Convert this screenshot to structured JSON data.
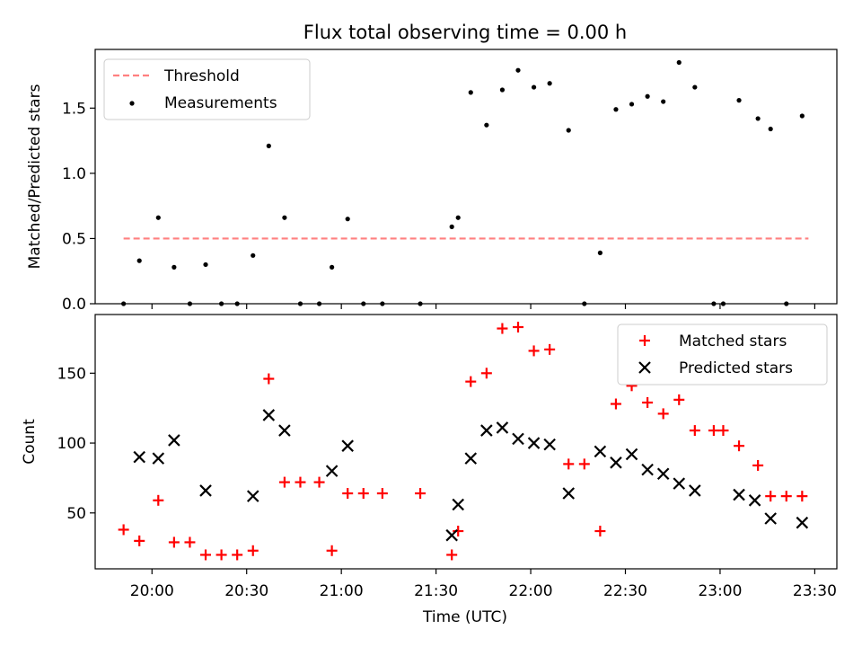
{
  "figure": {
    "title": "Flux total observing time = 0.00 h"
  },
  "chart_data": [
    {
      "type": "scatter",
      "ylabel": "Matched/Predicted stars",
      "xlabel": "",
      "ylim": [
        0,
        1.95
      ],
      "yticks": [
        0.0,
        0.5,
        1.0,
        1.5
      ],
      "grid": false,
      "legend": "top-left",
      "series": [
        {
          "name": "Threshold",
          "kind": "dashed-line",
          "color": "#ff8080",
          "x": [
            "19:51",
            "23:28"
          ],
          "y": [
            0.5,
            0.5
          ]
        },
        {
          "name": "Measurements",
          "kind": "points",
          "color": "#000000",
          "x": [
            "19:51",
            "19:56",
            "20:02",
            "20:07",
            "20:12",
            "20:17",
            "20:22",
            "20:27",
            "20:32",
            "20:37",
            "20:42",
            "20:47",
            "20:53",
            "20:57",
            "21:02",
            "21:07",
            "21:13",
            "21:25",
            "21:35",
            "21:37",
            "21:41",
            "21:46",
            "21:51",
            "21:56",
            "22:01",
            "22:06",
            "22:12",
            "22:17",
            "22:22",
            "22:27",
            "22:32",
            "22:37",
            "22:42",
            "22:47",
            "22:52",
            "22:58",
            "23:01",
            "23:06",
            "23:12",
            "23:16",
            "23:21",
            "23:26"
          ],
          "y": [
            0.0,
            0.33,
            0.66,
            0.28,
            0.0,
            0.3,
            0.0,
            0.0,
            0.37,
            1.21,
            0.66,
            0.0,
            0.0,
            0.28,
            0.65,
            0.0,
            0.0,
            0.0,
            0.59,
            0.66,
            1.62,
            1.37,
            1.64,
            1.79,
            1.66,
            1.69,
            1.33,
            0.0,
            0.39,
            1.49,
            1.53,
            1.59,
            1.55,
            1.85,
            1.66,
            0.0,
            0.0,
            1.56,
            1.42,
            1.34,
            0.0,
            1.44
          ]
        }
      ]
    },
    {
      "type": "scatter",
      "ylabel": "Count",
      "xlabel": "Time (UTC)",
      "ylim": [
        10,
        192
      ],
      "yticks": [
        50,
        100,
        150
      ],
      "xticks": [
        "20:00",
        "20:30",
        "21:00",
        "21:30",
        "22:00",
        "22:30",
        "23:00",
        "23:30"
      ],
      "grid": false,
      "legend": "top-right",
      "series": [
        {
          "name": "Matched stars",
          "marker": "plus",
          "color": "#ff0000",
          "x": [
            "19:51",
            "19:56",
            "20:02",
            "20:07",
            "20:12",
            "20:17",
            "20:22",
            "20:27",
            "20:32",
            "20:37",
            "20:42",
            "20:47",
            "20:53",
            "20:57",
            "21:02",
            "21:07",
            "21:13",
            "21:25",
            "21:35",
            "21:37",
            "21:41",
            "21:46",
            "21:51",
            "21:56",
            "22:01",
            "22:06",
            "22:12",
            "22:17",
            "22:22",
            "22:27",
            "22:32",
            "22:37",
            "22:42",
            "22:47",
            "22:52",
            "22:58",
            "23:01",
            "23:06",
            "23:12",
            "23:16",
            "23:21",
            "23:26"
          ],
          "y": [
            38,
            30,
            59,
            29,
            29,
            20,
            20,
            20,
            23,
            146,
            72,
            72,
            72,
            23,
            64,
            64,
            64,
            64,
            20,
            37,
            144,
            150,
            182,
            183,
            166,
            167,
            85,
            85,
            37,
            128,
            141,
            129,
            121,
            131,
            109,
            109,
            109,
            98,
            84,
            62,
            62,
            62
          ]
        },
        {
          "name": "Predicted stars",
          "marker": "x",
          "color": "#000000",
          "x": [
            "19:56",
            "20:02",
            "20:07",
            "20:17",
            "20:32",
            "20:37",
            "20:42",
            "20:57",
            "21:02",
            "21:35",
            "21:37",
            "21:41",
            "21:46",
            "21:51",
            "21:56",
            "22:01",
            "22:06",
            "22:12",
            "22:22",
            "22:27",
            "22:32",
            "22:37",
            "22:42",
            "22:47",
            "22:52",
            "23:06",
            "23:11",
            "23:16",
            "23:26"
          ],
          "y": [
            90,
            89,
            102,
            66,
            62,
            120,
            109,
            80,
            98,
            34,
            56,
            89,
            109,
            111,
            103,
            100,
            99,
            64,
            94,
            86,
            92,
            81,
            78,
            71,
            66,
            63,
            59,
            46,
            43
          ]
        }
      ]
    }
  ]
}
